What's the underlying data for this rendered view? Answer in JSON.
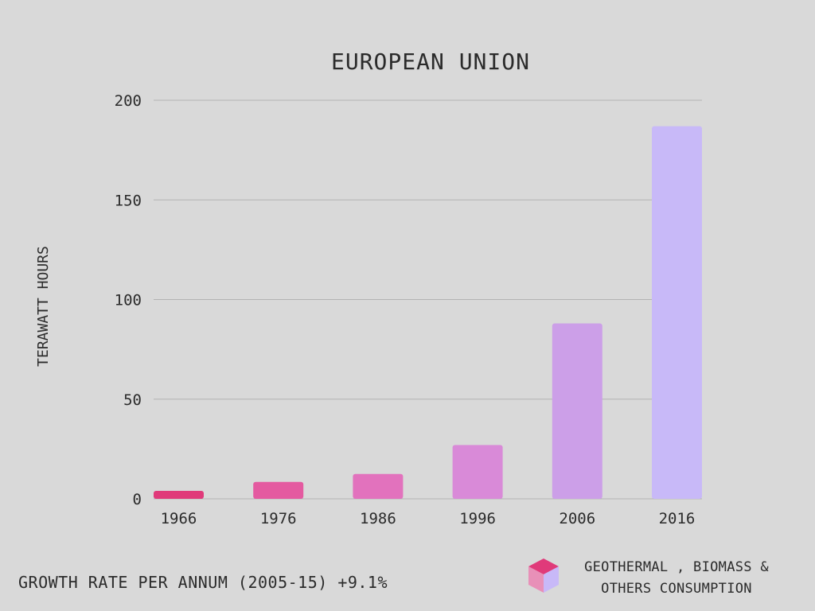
{
  "colors": {
    "background": "#d9d9d9",
    "grid": "#b3b3b3",
    "text": "#2b2b2b",
    "bars": [
      "#e03a7a",
      "#e45aa0",
      "#e272bd",
      "#d98ad8",
      "#cc9fe8",
      "#c8b9f8"
    ]
  },
  "chart_data": {
    "type": "bar",
    "title": "EUROPEAN UNION",
    "xlabel": "",
    "ylabel": "TERAWATT HOURS",
    "categories": [
      "1966",
      "1976",
      "1986",
      "1996",
      "2006",
      "2016"
    ],
    "values": [
      4,
      8.5,
      12.5,
      27,
      88,
      187
    ],
    "ylim": [
      0,
      200
    ],
    "yticks": [
      0,
      50,
      100,
      150,
      200
    ],
    "grid": true
  },
  "footer": {
    "growth_rate": "GROWTH RATE PER ANNUM (2005-15) +9.1%"
  },
  "legend": {
    "icon": "cube-icon",
    "line1": "GEOTHERMAL , BIOMASS &",
    "line2": "OTHERS CONSUMPTION"
  }
}
